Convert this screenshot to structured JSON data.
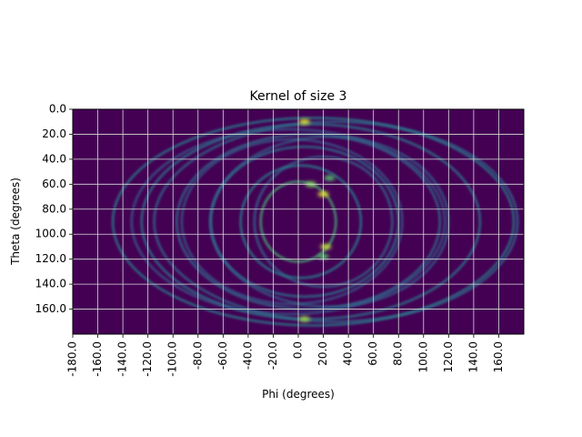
{
  "chart_data": {
    "type": "heatmap",
    "title": "Kernel of size 3",
    "xlabel": "Phi (degrees)",
    "ylabel": "Theta (degrees)",
    "xlim": [
      -180,
      180
    ],
    "ylim": [
      180,
      0
    ],
    "grid": true,
    "colormap": "viridis",
    "x_ticks": [
      "-180.0",
      "-160.0",
      "-140.0",
      "-120.0",
      "-100.0",
      "-80.0",
      "-60.0",
      "-40.0",
      "-20.0",
      "0.0",
      "20.0",
      "40.0",
      "60.0",
      "80.0",
      "100.0",
      "120.0",
      "140.0",
      "160.0"
    ],
    "y_ticks": [
      "0.0",
      "20.0",
      "40.0",
      "60.0",
      "80.0",
      "100.0",
      "120.0",
      "140.0",
      "160.0"
    ],
    "background_color": "#440154",
    "grid_color": "#d9d9d9",
    "rings": [
      {
        "phi_center": 0,
        "theta_center": 90,
        "phi_radius": 30,
        "theta_radius": 32,
        "intensity": 0.65
      },
      {
        "phi_center": 2,
        "theta_center": 90,
        "phi_radius": 48,
        "theta_radius": 45,
        "intensity": 0.45
      },
      {
        "phi_center": 5,
        "theta_center": 90,
        "phi_radius": 75,
        "theta_radius": 60,
        "intensity": 0.4
      },
      {
        "phi_center": 8,
        "theta_center": 90,
        "phi_radius": 105,
        "theta_radius": 70,
        "intensity": 0.38
      },
      {
        "phi_center": 10,
        "theta_center": 90,
        "phi_radius": 135,
        "theta_radius": 78,
        "intensity": 0.42
      },
      {
        "phi_center": 12,
        "theta_center": 90,
        "phi_radius": 160,
        "theta_radius": 83,
        "intensity": 0.45
      },
      {
        "phi_center": -5,
        "theta_center": 90,
        "phi_radius": 88,
        "theta_radius": 66,
        "intensity": 0.3
      },
      {
        "phi_center": -8,
        "theta_center": 90,
        "phi_radius": 125,
        "theta_radius": 74,
        "intensity": 0.3
      },
      {
        "phi_center": 20,
        "theta_center": 90,
        "phi_radius": 55,
        "theta_radius": 52,
        "intensity": 0.35
      },
      {
        "phi_center": 25,
        "theta_center": 90,
        "phi_radius": 95,
        "theta_radius": 68,
        "intensity": 0.32
      },
      {
        "phi_center": 30,
        "theta_center": 90,
        "phi_radius": 145,
        "theta_radius": 80,
        "intensity": 0.36
      }
    ],
    "hotspots": [
      {
        "phi": 5,
        "theta": 10,
        "intensity": 0.95
      },
      {
        "phi": 20,
        "theta": 68,
        "intensity": 0.95
      },
      {
        "phi": 22,
        "theta": 110,
        "intensity": 0.9
      },
      {
        "phi": 10,
        "theta": 60,
        "intensity": 0.8
      },
      {
        "phi": 5,
        "theta": 168,
        "intensity": 0.85
      },
      {
        "phi": 25,
        "theta": 55,
        "intensity": 0.7
      },
      {
        "phi": 20,
        "theta": 118,
        "intensity": 0.7
      }
    ],
    "vertical_bands": [
      {
        "phi": 18,
        "intensity": 0.4
      },
      {
        "phi": 25,
        "intensity": 0.45
      },
      {
        "phi": -22,
        "intensity": 0.3
      },
      {
        "phi": 160,
        "intensity": 0.25
      }
    ]
  }
}
